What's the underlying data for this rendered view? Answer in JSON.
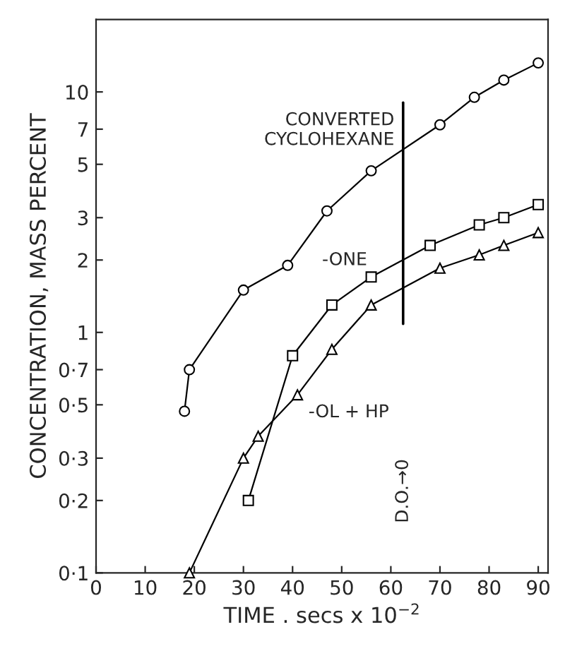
{
  "chart_data": {
    "type": "line",
    "xlabel": "TIME . secs x 10$^{−2}$",
    "ylabel": "CONCENTRATION, MASS PERCENT",
    "log": "y",
    "xlim": [
      0,
      92
    ],
    "xticks": [
      0,
      10,
      20,
      30,
      40,
      50,
      60,
      70,
      80,
      90
    ],
    "ylim": [
      0.1,
      20
    ],
    "yticks": [
      {
        "value": 0.1,
        "label": "0·1"
      },
      {
        "value": 0.2,
        "label": "0·2"
      },
      {
        "value": 0.3,
        "label": "0·3"
      },
      {
        "value": 0.5,
        "label": "0·5"
      },
      {
        "value": 0.7,
        "label": "0·7"
      },
      1,
      2,
      3,
      5,
      7,
      10
    ],
    "grid": false,
    "line_style": "solid",
    "series": [
      {
        "color": "#000000",
        "marker": "circle",
        "x": [
          18,
          19,
          30,
          39,
          47,
          56,
          70,
          77,
          83,
          90
        ],
        "values": [
          0.47,
          0.7,
          1.5,
          1.9,
          3.2,
          4.7,
          7.3,
          9.5,
          11.2,
          13.2
        ]
      },
      {
        "color": "#000000",
        "marker": "square",
        "x": [
          31,
          40,
          48,
          56,
          68,
          78,
          83,
          90
        ],
        "values": [
          0.2,
          0.8,
          1.3,
          1.7,
          2.3,
          2.8,
          3.0,
          3.4
        ]
      },
      {
        "color": "#000000",
        "marker": "triangle",
        "x": [
          19,
          30,
          33,
          41,
          48,
          56,
          70,
          78,
          83,
          90
        ],
        "values": [
          0.1,
          0.3,
          0.37,
          0.55,
          0.85,
          1.3,
          1.85,
          2.1,
          2.3,
          2.6
        ]
      }
    ],
    "ref_lines": [
      {
        "axis": "x",
        "value": 62.5,
        "label": "D.O.→0",
        "color": "#000000"
      }
    ],
    "annotations": [
      "CONVERTED\nCYCLOHEXANE",
      "-ONE",
      "-OL + HP"
    ]
  }
}
